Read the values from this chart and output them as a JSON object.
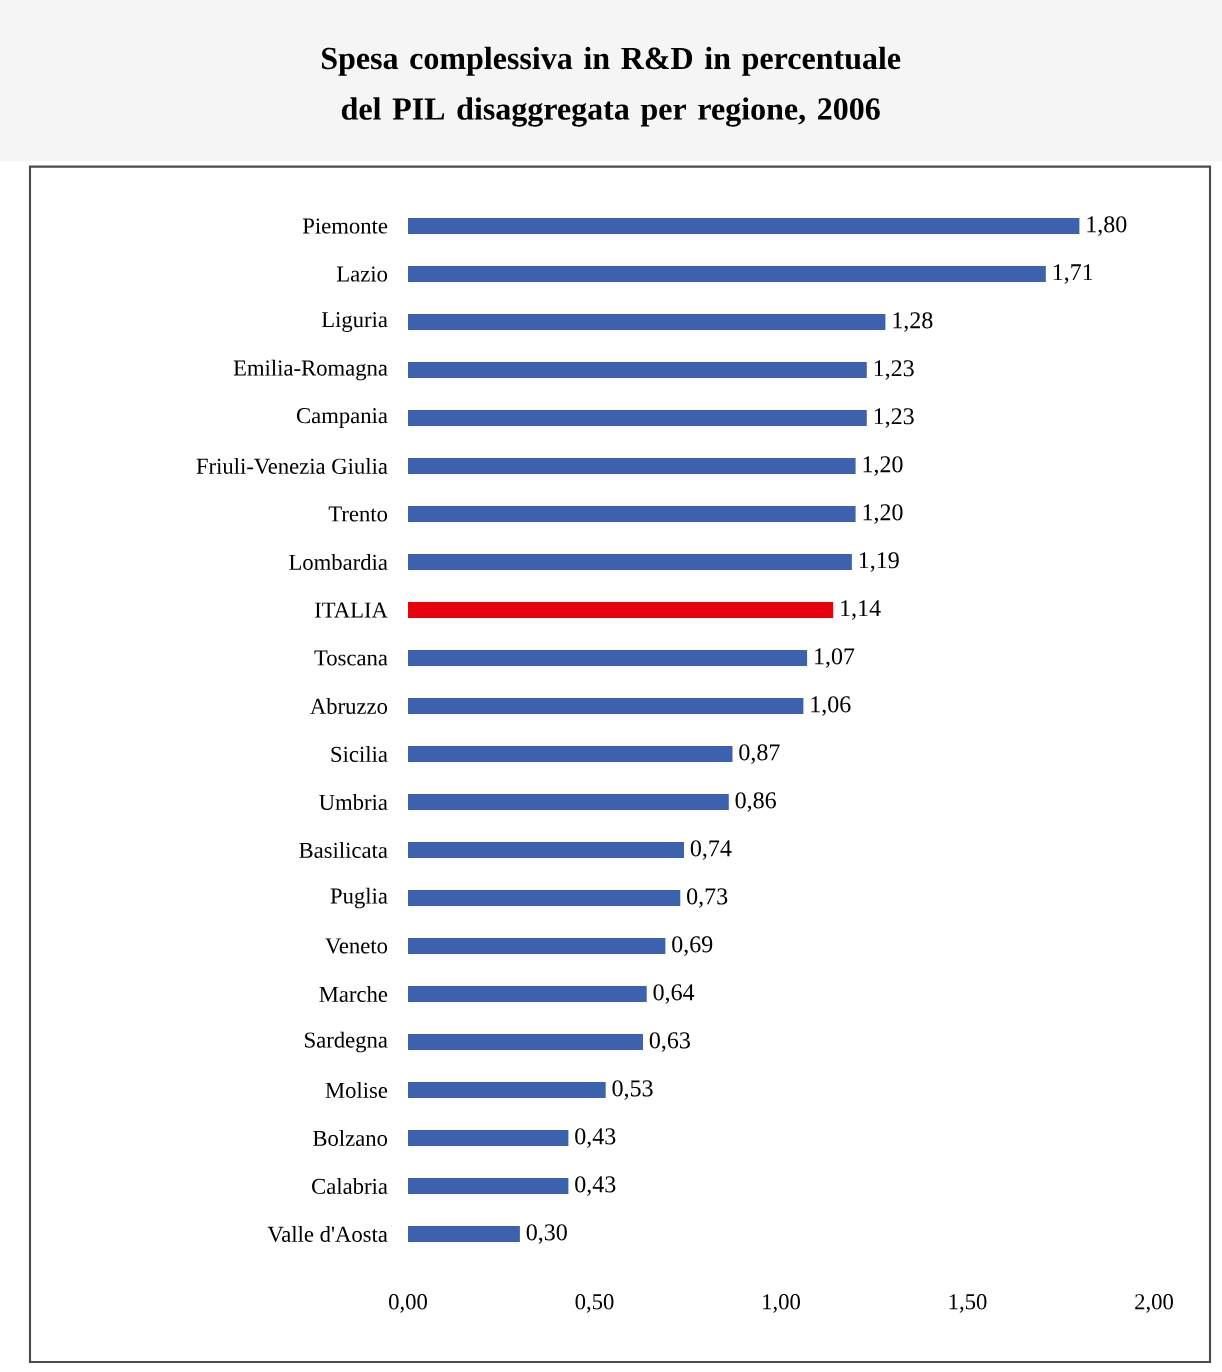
{
  "chart_data": {
    "type": "bar",
    "orientation": "horizontal",
    "title": "Spesa complessiva in R&D in percentuale del PIL disaggregata per regione, 2006",
    "categories": [
      "Piemonte",
      "Lazio",
      "Liguria",
      "Emilia-Romagna",
      "Campania",
      "Friuli-Venezia Giulia",
      "Trento",
      "Lombardia",
      "ITALIA",
      "Toscana",
      "Abruzzo",
      "Sicilia",
      "Umbria",
      "Basilicata",
      "Puglia",
      "Veneto",
      "Marche",
      "Sardegna",
      "Molise",
      "Bolzano",
      "Calabria",
      "Valle d'Aosta"
    ],
    "values": [
      1.8,
      1.71,
      1.28,
      1.23,
      1.23,
      1.2,
      1.2,
      1.19,
      1.14,
      1.07,
      1.06,
      0.87,
      0.86,
      0.74,
      0.73,
      0.69,
      0.64,
      0.63,
      0.53,
      0.43,
      0.43,
      0.3
    ],
    "value_labels": [
      "1,80",
      "1,71",
      "1,28",
      "1,23",
      "1,23",
      "1,20",
      "1,20",
      "1,19",
      "1,14",
      "1,07",
      "1,06",
      "0,87",
      "0,86",
      "0,74",
      "0,73",
      "0,69",
      "0,64",
      "0,63",
      "0,53",
      "0,43",
      "0,43",
      "0,30"
    ],
    "colors": [
      "#3d62ad",
      "#3d62ad",
      "#3d62ad",
      "#3d62ad",
      "#3d62ad",
      "#3d62ad",
      "#3d62ad",
      "#3d62ad",
      "#e8000b",
      "#3d62ad",
      "#3d62ad",
      "#3d62ad",
      "#3d62ad",
      "#3d62ad",
      "#3d62ad",
      "#3d62ad",
      "#3d62ad",
      "#3d62ad",
      "#3d62ad",
      "#3d62ad",
      "#3d62ad",
      "#3d62ad"
    ],
    "xlim": [
      0,
      2
    ],
    "xticks": [
      {
        "value": 0,
        "label": "0,00"
      },
      {
        "value": 0.5,
        "label": "0,50"
      },
      {
        "value": 1,
        "label": "1,00"
      },
      {
        "value": 1.5,
        "label": "1,50"
      },
      {
        "value": 2,
        "label": "2,00"
      }
    ],
    "grid": false
  }
}
